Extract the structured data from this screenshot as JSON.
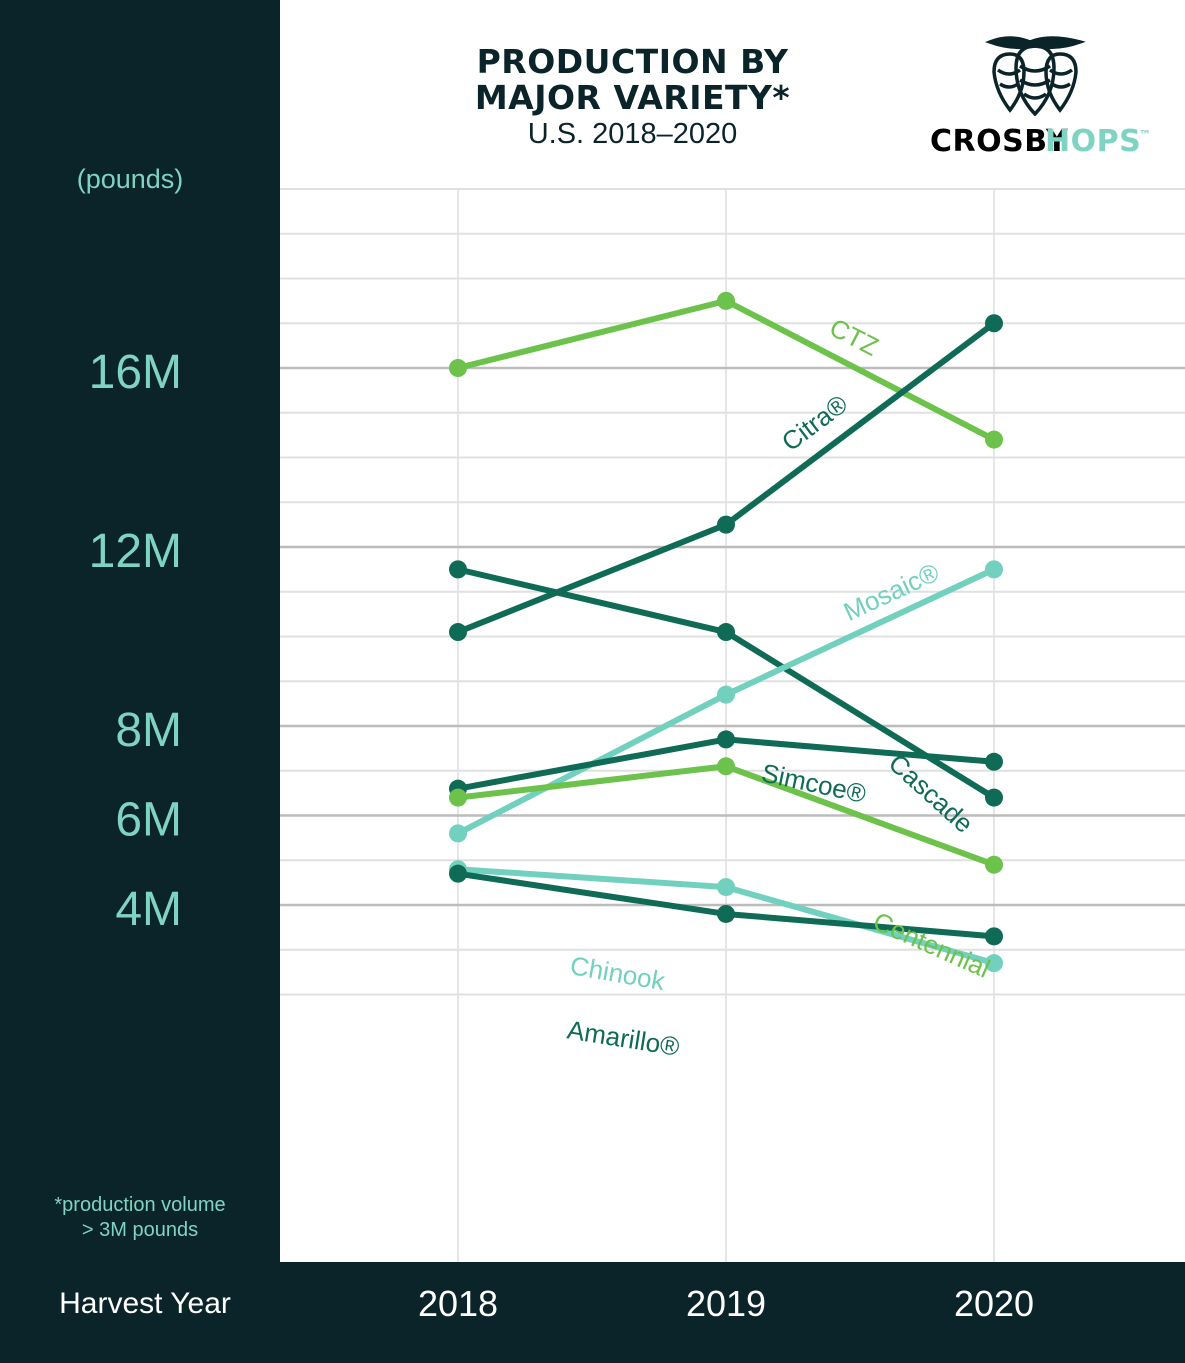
{
  "header": {
    "title_line1": "PRODUCTION BY",
    "title_line2": "MAJOR VARIETY*",
    "subtitle": "U.S. 2018–2020"
  },
  "logo": {
    "icon": "hop-cones-icon",
    "brand_dark": "CROSBY",
    "brand_accent": "HOPS",
    "trademark": "™",
    "dark_color": "#0b2429",
    "accent_color": "#7fd3c2"
  },
  "sidebar": {
    "units": "(pounds)",
    "footnote_line1": "*production volume",
    "footnote_line2": "> 3M pounds"
  },
  "xaxis": {
    "title": "Harvest Year"
  },
  "colors": {
    "background_dark": "#0b2429",
    "grid": "#cccccc",
    "dark_green": "#0f6b55",
    "light_green": "#6cc24a",
    "teal": "#72d0bf"
  },
  "chart_data": {
    "type": "line",
    "title": "PRODUCTION BY MAJOR VARIETY*",
    "subtitle": "U.S. 2018–2020",
    "xlabel": "Harvest Year",
    "ylabel": "(pounds)",
    "x": [
      "2018",
      "2019",
      "2020"
    ],
    "yticks": [
      4,
      6,
      8,
      12,
      16
    ],
    "ytick_labels": [
      "4M",
      "6M",
      "8M",
      "12M",
      "16M"
    ],
    "ylim": [
      2,
      20
    ],
    "grid": true,
    "series": [
      {
        "name": "CTZ",
        "values": [
          16.0,
          17.5,
          14.4
        ],
        "color": "#6cc24a"
      },
      {
        "name": "Citra®",
        "values": [
          10.1,
          12.5,
          17.0
        ],
        "color": "#0f6b55"
      },
      {
        "name": "Cascade",
        "values": [
          11.5,
          10.1,
          6.4
        ],
        "color": "#0f6b55"
      },
      {
        "name": "Mosaic®",
        "values": [
          5.6,
          8.7,
          11.5
        ],
        "color": "#72d0bf"
      },
      {
        "name": "Simcoe®",
        "values": [
          6.6,
          7.7,
          7.2
        ],
        "color": "#0f6b55"
      },
      {
        "name": "Centennial",
        "values": [
          6.4,
          7.1,
          4.9
        ],
        "color": "#6cc24a"
      },
      {
        "name": "Chinook",
        "values": [
          4.8,
          4.4,
          2.7
        ],
        "color": "#72d0bf"
      },
      {
        "name": "Amarillo®",
        "values": [
          4.7,
          3.8,
          3.3
        ],
        "color": "#0f6b55"
      }
    ]
  }
}
